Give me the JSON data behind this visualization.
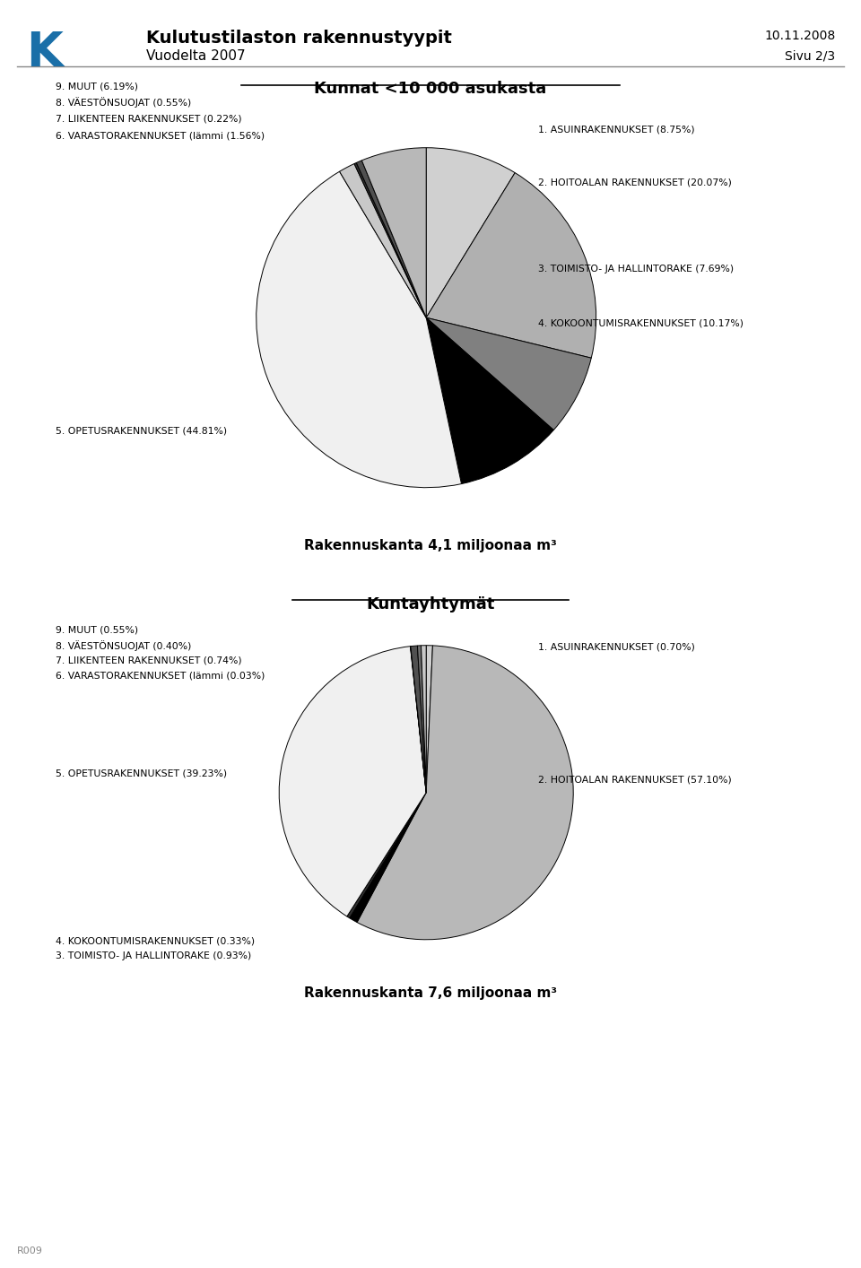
{
  "title_main": "Kulutustilaston rakennustyypit",
  "subtitle_main": "Vuodelta 2007",
  "date": "10.11.2008",
  "page": "Sivu 2/3",
  "watermark": "R009",
  "chart1_title": "Kunnat <10 000 asukasta",
  "chart1_subtitle": "Rakennuskanta 4,1 miljoonaa m³",
  "chart1_labels": [
    "1. ASUINRAKENNUKSET (8.75%)",
    "2. HOITOALAN RAKENNUKSET (20.07%)",
    "3. TOIMISTO- JA HALLINTORAKE (7.69%)",
    "4. KOKOONTUMISRAKENNUKSET (10.17%)",
    "5. OPETUSRAKENNUKSET (44.81%)",
    "6. VARASTORAKENNUKSET (lämmi (1.56%)",
    "7. LIIKENTEEN RAKENNUKSET (0.22%)",
    "8. VÄESTÖNSUOJAT (0.55%)",
    "9. MUUT (6.19%)"
  ],
  "chart1_values": [
    8.75,
    20.07,
    7.69,
    10.17,
    44.81,
    1.56,
    0.22,
    0.55,
    6.19
  ],
  "chart1_colors": [
    "#d0d0d0",
    "#b0b0b0",
    "#808080",
    "#000000",
    "#f0f0f0",
    "#c8c8c8",
    "#303030",
    "#505050",
    "#b8b8b8"
  ],
  "chart2_title": "Kuntayhtymät",
  "chart2_subtitle": "Rakennuskanta 7,6 miljoonaa m³",
  "chart2_labels": [
    "1. ASUINRAKENNUKSET (0.70%)",
    "2. HOITOALAN RAKENNUKSET (57.10%)",
    "3. TOIMISTO- JA HALLINTORAKE (0.93%)",
    "4. KOKOONTUMISRAKENNUKSET (0.33%)",
    "5. OPETUSRAKENNUKSET (39.23%)",
    "6. VARASTORAKENNUKSET (lämmi (0.03%)",
    "7. LIIKENTEEN RAKENNUKSET (0.74%)",
    "8. VÄESTÖNSUOJAT (0.40%)",
    "9. MUUT (0.55%)"
  ],
  "chart2_values": [
    0.7,
    57.1,
    0.93,
    0.33,
    39.23,
    0.03,
    0.74,
    0.4,
    0.55
  ],
  "chart2_colors": [
    "#d0d0d0",
    "#b8b8b8",
    "#000000",
    "#303030",
    "#f0f0f0",
    "#c0c0c0",
    "#505050",
    "#707070",
    "#c8c8c8"
  ],
  "bg_color": "#ffffff",
  "text_color": "#000000",
  "logo_color_blue": "#1a6fa8"
}
